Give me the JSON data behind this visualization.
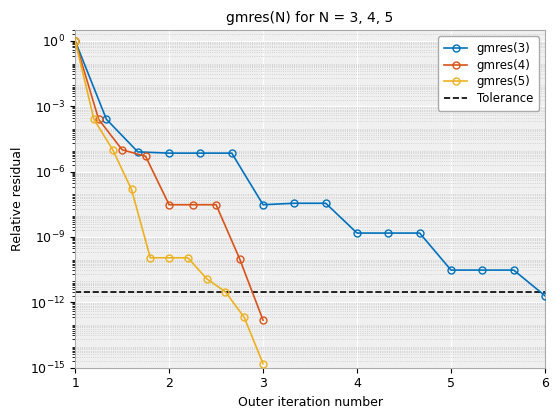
{
  "title": "gmres(N) for N = 3, 4, 5",
  "xlabel": "Outer iteration number",
  "ylabel": "Relative residual",
  "tolerance": 3e-12,
  "xlim": [
    1,
    6
  ],
  "ylim": [
    1e-15,
    3
  ],
  "gmres3": {
    "x": [
      1.0,
      1.333,
      1.667,
      2.0,
      2.333,
      2.667,
      3.0,
      3.333,
      3.667,
      4.0,
      4.333,
      4.667,
      5.0,
      5.333,
      5.667,
      6.0
    ],
    "y": [
      1.0,
      0.00025,
      8e-06,
      7e-06,
      7e-06,
      7e-06,
      3e-08,
      3.5e-08,
      3.5e-08,
      1.5e-09,
      1.5e-09,
      1.5e-09,
      3e-11,
      3e-11,
      3e-11,
      2e-12
    ],
    "color": "#0072BD",
    "label": "gmres(3)"
  },
  "gmres4": {
    "x": [
      1.0,
      1.25,
      1.5,
      1.75,
      2.0,
      2.25,
      2.5,
      2.75,
      3.0
    ],
    "y": [
      1.0,
      0.00025,
      1e-05,
      5e-06,
      3e-08,
      3e-08,
      3e-08,
      1e-10,
      1.5e-13
    ],
    "color": "#D95319",
    "label": "gmres(4)"
  },
  "gmres5": {
    "x": [
      1.0,
      1.2,
      1.4,
      1.6,
      1.8,
      2.0,
      2.2,
      2.4,
      2.6,
      2.8,
      3.0
    ],
    "y": [
      1.0,
      0.00025,
      1e-05,
      1.5e-07,
      1.1e-10,
      1.1e-10,
      1.1e-10,
      1.2e-11,
      3e-12,
      2e-13,
      1.5e-15
    ],
    "color": "#EDB120",
    "label": "gmres(5)"
  },
  "tol_color": "#000000",
  "tol_label": "Tolerance",
  "bg_color": "#F0F0F0",
  "grid_color": "#FFFFFF",
  "grid_minor_color": "#D0D0D0"
}
